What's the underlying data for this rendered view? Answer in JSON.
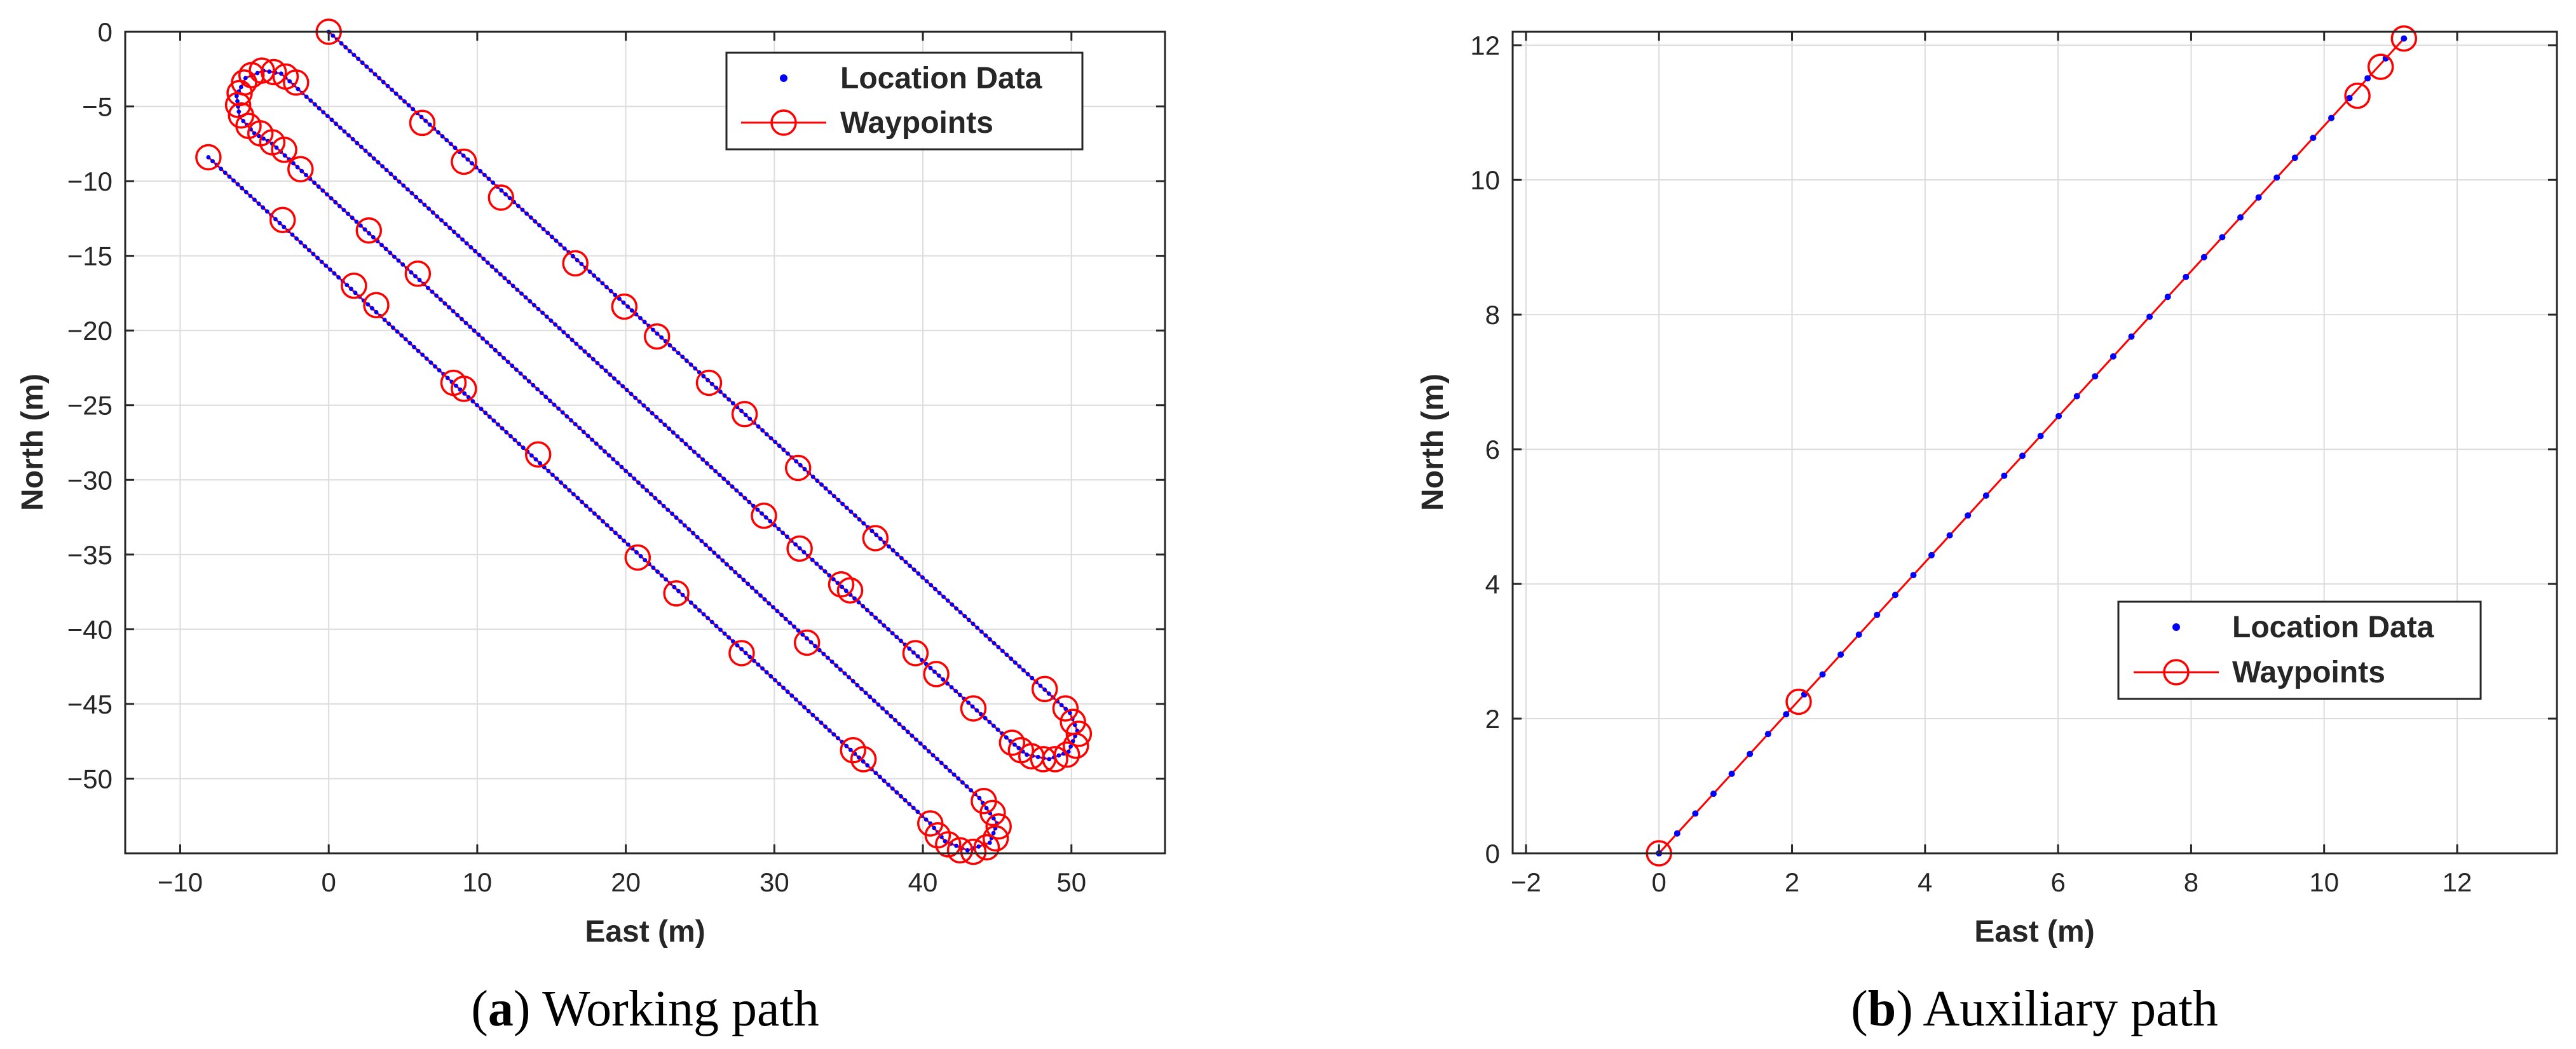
{
  "chart_data": [
    {
      "type": "line",
      "title": "",
      "xlabel": "East (m)",
      "ylabel": "North (m)",
      "xlim": [
        -13.7,
        56.3
      ],
      "ylim": [
        -55.0,
        0.0
      ],
      "xticks": [
        -10,
        0,
        10,
        20,
        30,
        40,
        50
      ],
      "yticks": [
        0,
        -5,
        -10,
        -15,
        -20,
        -25,
        -30,
        -35,
        -40,
        -45,
        -50
      ],
      "xtick_labels": [
        "−10",
        "0",
        "10",
        "20",
        "30",
        "40",
        "50"
      ],
      "ytick_labels": [
        "0",
        "−5",
        "−10",
        "−15",
        "−20",
        "−25",
        "−30",
        "−35",
        "−40",
        "−45",
        "−50"
      ],
      "grid": true,
      "legend_position": "top-right",
      "caption_label": "a",
      "caption_text": "Working path",
      "series": [
        {
          "name": "Location Data",
          "style": "points",
          "color": "#0000ff",
          "path": [
            [
              0,
              0
            ],
            [
              49.9,
              -45.6
            ],
            [
              50.4,
              -46.8
            ],
            [
              49.8,
              -48.2
            ],
            [
              48.5,
              -48.7
            ],
            [
              47.0,
              -48.4
            ],
            [
              45.9,
              -47.5
            ],
            [
              -3.2,
              -2.8
            ],
            [
              -4.4,
              -2.6
            ],
            [
              -5.6,
              -3.1
            ],
            [
              -6.2,
              -4.3
            ],
            [
              -6.0,
              -5.7
            ],
            [
              -5.0,
              -6.8
            ],
            [
              -3.8,
              -7.5
            ],
            [
              43.8,
              -51.3
            ],
            [
              45.0,
              -53.0
            ],
            [
              44.5,
              -54.3
            ],
            [
              43.0,
              -54.8
            ],
            [
              41.5,
              -54.2
            ],
            [
              40.5,
              -53.0
            ],
            [
              -8.1,
              -8.4
            ]
          ]
        },
        {
          "name": "Waypoints",
          "style": "line-circle",
          "color": "#ff0000",
          "path": [
            [
              0,
              0
            ],
            [
              49.9,
              -45.6
            ],
            [
              50.4,
              -46.8
            ],
            [
              49.8,
              -48.2
            ],
            [
              48.5,
              -48.7
            ],
            [
              47.0,
              -48.4
            ],
            [
              45.9,
              -47.5
            ],
            [
              -3.2,
              -2.8
            ],
            [
              -4.4,
              -2.6
            ],
            [
              -5.6,
              -3.1
            ],
            [
              -6.2,
              -4.3
            ],
            [
              -6.0,
              -5.7
            ],
            [
              -5.0,
              -6.8
            ],
            [
              -3.8,
              -7.5
            ],
            [
              43.8,
              -51.3
            ],
            [
              45.0,
              -53.0
            ],
            [
              44.5,
              -54.3
            ],
            [
              43.0,
              -54.8
            ],
            [
              41.5,
              -54.2
            ],
            [
              40.5,
              -53.0
            ],
            [
              -8.1,
              -8.4
            ]
          ],
          "markers": [
            [
              0,
              0
            ],
            [
              6.3,
              -6.1
            ],
            [
              9.1,
              -8.7
            ],
            [
              11.6,
              -11.1
            ],
            [
              16.6,
              -15.5
            ],
            [
              19.9,
              -18.4
            ],
            [
              22.1,
              -20.4
            ],
            [
              25.6,
              -23.5
            ],
            [
              28.0,
              -25.6
            ],
            [
              31.6,
              -29.2
            ],
            [
              36.8,
              -33.9
            ],
            [
              48.2,
              -44.0
            ],
            [
              49.6,
              -45.3
            ],
            [
              50.1,
              -46.2
            ],
            [
              50.5,
              -47.0
            ],
            [
              50.3,
              -47.8
            ],
            [
              49.7,
              -48.4
            ],
            [
              48.9,
              -48.7
            ],
            [
              48.1,
              -48.7
            ],
            [
              47.3,
              -48.5
            ],
            [
              46.6,
              -48.1
            ],
            [
              46.0,
              -47.6
            ],
            [
              43.4,
              -45.3
            ],
            [
              40.9,
              -43.0
            ],
            [
              39.5,
              -41.6
            ],
            [
              32.2,
              -40.9
            ],
            [
              35.1,
              -37.4
            ],
            [
              34.5,
              -37.0
            ],
            [
              31.7,
              -34.6
            ],
            [
              29.3,
              -32.4
            ],
            [
              -2.2,
              -3.4
            ],
            [
              -2.9,
              -3.0
            ],
            [
              -3.7,
              -2.7
            ],
            [
              -4.5,
              -2.6
            ],
            [
              -5.2,
              -2.9
            ],
            [
              -5.7,
              -3.4
            ],
            [
              -6.0,
              -4.1
            ],
            [
              -6.1,
              -4.9
            ],
            [
              -5.9,
              -5.6
            ],
            [
              -5.4,
              -6.3
            ],
            [
              -4.6,
              -6.8
            ],
            [
              -3.8,
              -7.4
            ],
            [
              -3.0,
              -7.9
            ],
            [
              -1.9,
              -9.2
            ],
            [
              2.7,
              -13.3
            ],
            [
              6.0,
              -16.2
            ],
            [
              8.4,
              -23.5
            ],
            [
              9.1,
              -23.9
            ],
            [
              20.8,
              -35.2
            ],
            [
              23.4,
              -37.6
            ],
            [
              27.8,
              -41.6
            ],
            [
              44.1,
              -51.5
            ],
            [
              44.7,
              -52.3
            ],
            [
              45.1,
              -53.2
            ],
            [
              44.9,
              -54.0
            ],
            [
              44.3,
              -54.6
            ],
            [
              43.4,
              -54.9
            ],
            [
              42.5,
              -54.8
            ],
            [
              41.7,
              -54.4
            ],
            [
              41.0,
              -53.8
            ],
            [
              40.5,
              -53.0
            ],
            [
              -8.1,
              -8.4
            ],
            [
              -3.1,
              -12.6
            ],
            [
              1.7,
              -17.0
            ],
            [
              3.2,
              -18.3
            ],
            [
              14.1,
              -28.3
            ],
            [
              35.3,
              -48.1
            ],
            [
              36.0,
              -48.7
            ]
          ]
        }
      ]
    },
    {
      "type": "line",
      "title": "",
      "xlabel": "East (m)",
      "ylabel": "North (m)",
      "xlim": [
        -2.2,
        13.5
      ],
      "ylim": [
        0.0,
        12.2
      ],
      "xticks": [
        -2,
        0,
        2,
        4,
        6,
        8,
        10,
        12
      ],
      "yticks": [
        0,
        2,
        4,
        6,
        8,
        10,
        12
      ],
      "xtick_labels": [
        "−2",
        "0",
        "2",
        "4",
        "6",
        "8",
        "10",
        "12"
      ],
      "ytick_labels": [
        "0",
        "2",
        "4",
        "6",
        "8",
        "10",
        "12"
      ],
      "grid": true,
      "legend_position": "bottom-right",
      "caption_label": "b",
      "caption_text": "Auxiliary path",
      "series": [
        {
          "name": "Location Data",
          "style": "points",
          "color": "#0000ff",
          "path": [
            [
              0,
              0
            ],
            [
              11.2,
              12.1
            ]
          ]
        },
        {
          "name": "Waypoints",
          "style": "line-circle",
          "color": "#ff0000",
          "path": [
            [
              0,
              0
            ],
            [
              11.2,
              12.1
            ]
          ],
          "markers": [
            [
              0,
              0
            ],
            [
              2.1,
              2.25
            ],
            [
              10.5,
              11.25
            ],
            [
              10.85,
              11.68
            ],
            [
              11.2,
              12.1
            ]
          ]
        }
      ]
    }
  ]
}
